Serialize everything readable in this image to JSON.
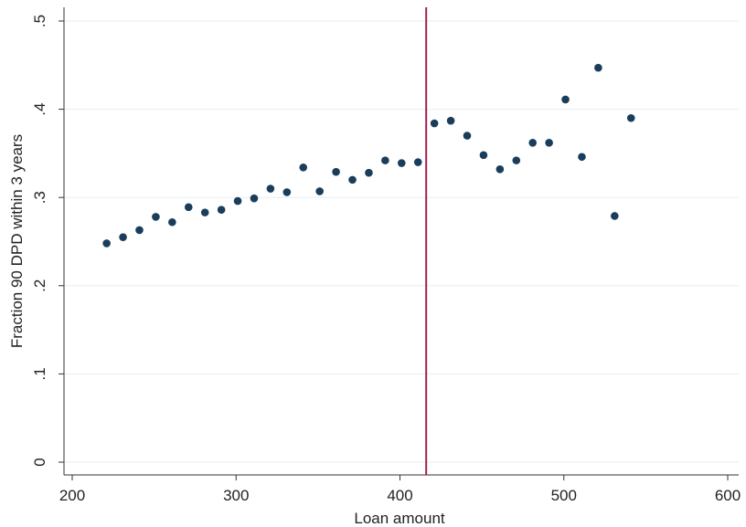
{
  "chart_data": {
    "type": "scatter",
    "title": "",
    "xlabel": "Loan amount",
    "ylabel": "Fraction 90 DPD within 3 years",
    "xlim": [
      200,
      600
    ],
    "ylim": [
      0,
      0.5
    ],
    "x_ticks": [
      200,
      300,
      400,
      500,
      600
    ],
    "x_tick_labels": [
      "200",
      "300",
      "400",
      "500",
      "600"
    ],
    "y_ticks": [
      0,
      0.1,
      0.2,
      0.3,
      0.4,
      0.5
    ],
    "y_tick_labels": [
      "0",
      ".1",
      ".2",
      ".3",
      ".4",
      ".5"
    ],
    "grid": "horizontal",
    "cutoff_line": {
      "x": 416,
      "color": "#a1234f"
    },
    "marker_color": "#1a3d5c",
    "series": [
      {
        "points": [
          [
            221,
            0.248
          ],
          [
            231,
            0.255
          ],
          [
            241,
            0.263
          ],
          [
            251,
            0.278
          ],
          [
            261,
            0.272
          ],
          [
            271,
            0.289
          ],
          [
            281,
            0.283
          ],
          [
            291,
            0.286
          ],
          [
            301,
            0.296
          ],
          [
            311,
            0.299
          ],
          [
            321,
            0.31
          ],
          [
            331,
            0.306
          ],
          [
            341,
            0.334
          ],
          [
            351,
            0.307
          ],
          [
            361,
            0.329
          ],
          [
            371,
            0.32
          ],
          [
            381,
            0.328
          ],
          [
            391,
            0.342
          ],
          [
            401,
            0.339
          ],
          [
            411,
            0.34
          ],
          [
            421,
            0.384
          ],
          [
            431,
            0.387
          ],
          [
            441,
            0.37
          ],
          [
            451,
            0.348
          ],
          [
            461,
            0.332
          ],
          [
            471,
            0.342
          ],
          [
            481,
            0.362
          ],
          [
            491,
            0.362
          ],
          [
            501,
            0.411
          ],
          [
            511,
            0.346
          ],
          [
            521,
            0.447
          ],
          [
            531,
            0.279
          ],
          [
            541,
            0.39
          ]
        ]
      }
    ]
  }
}
